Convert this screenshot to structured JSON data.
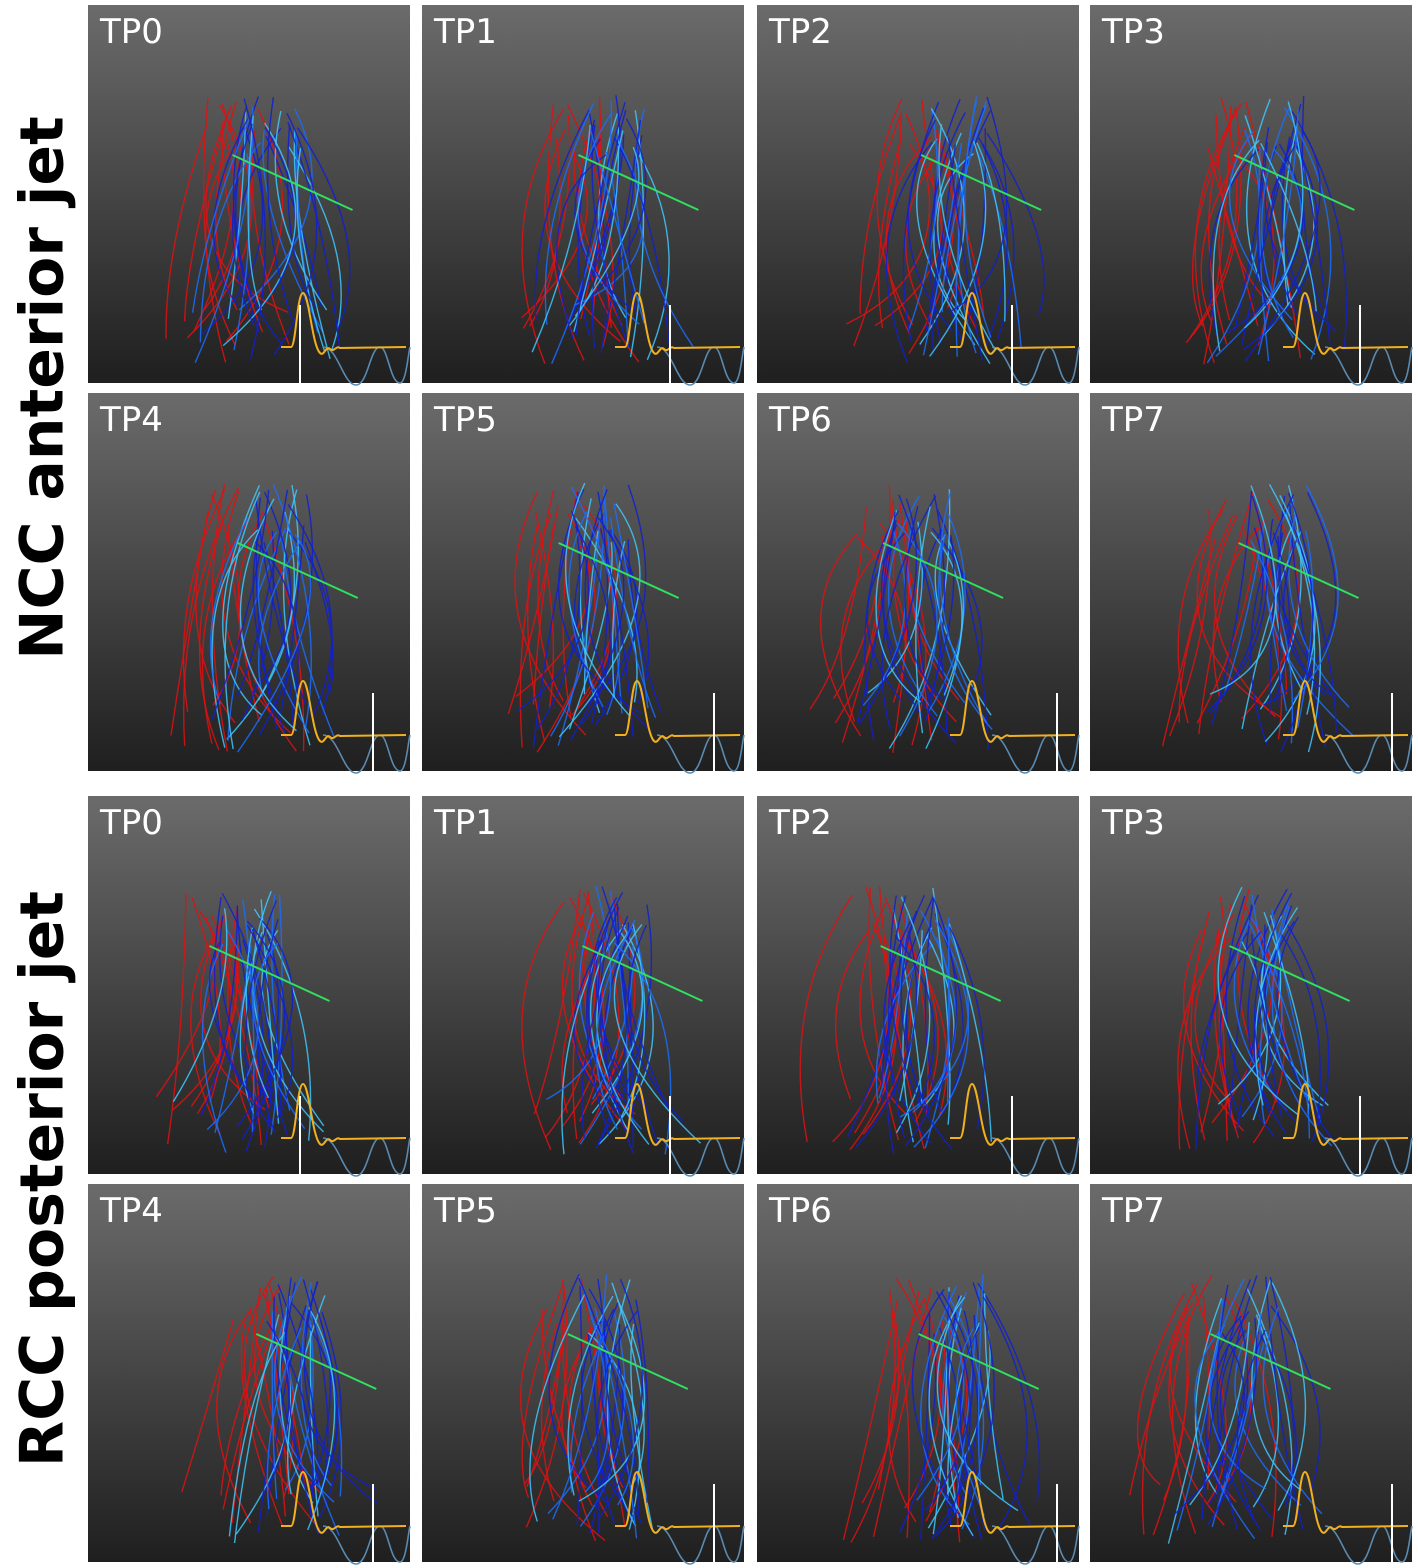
{
  "groups": [
    {
      "label": "NCC anterior jet",
      "panels": [
        "TP0",
        "TP1",
        "TP2",
        "TP3",
        "TP4",
        "TP5",
        "TP6",
        "TP7"
      ]
    },
    {
      "label": "RCC posterior jet",
      "panels": [
        "TP0",
        "TP1",
        "TP2",
        "TP3",
        "TP4",
        "TP5",
        "TP6",
        "TP7"
      ]
    }
  ]
}
